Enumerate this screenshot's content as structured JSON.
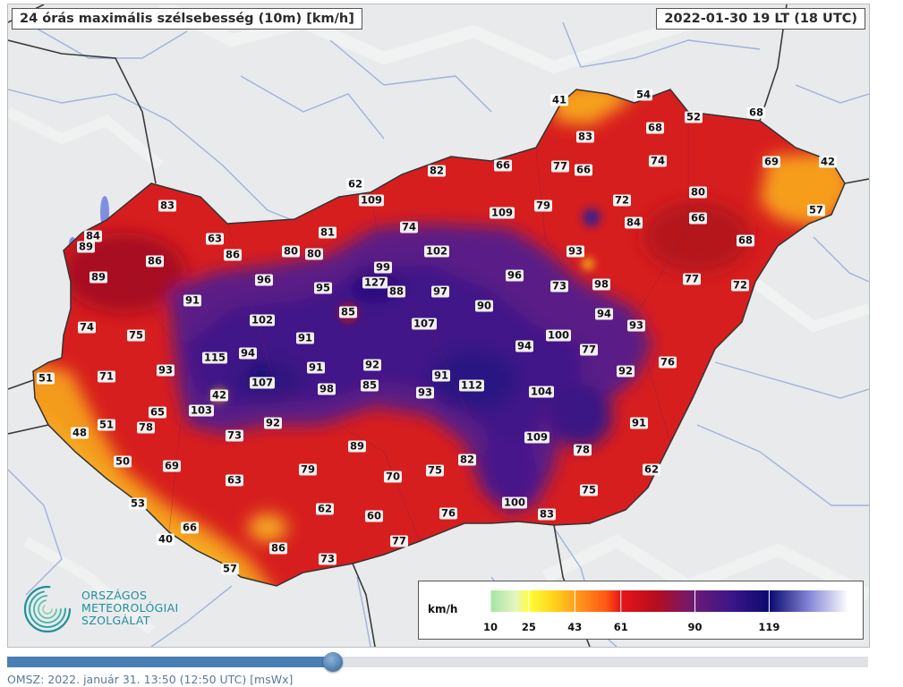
{
  "header": {
    "title": "24 órás maximális szélsebesség (10m) [km/h]",
    "timestamp": "2022-01-30 19 LT  (18 UTC)"
  },
  "colors": {
    "background_terrain": "#e9eaec",
    "country_base": "#d71e1e",
    "violet_core": "#4a1a8c",
    "orange_border": "#f6a21a"
  },
  "map": {
    "region": "Magyarország",
    "stations": [
      {
        "value": "41"
      },
      {
        "value": "54"
      },
      {
        "value": "52"
      },
      {
        "value": "68"
      },
      {
        "value": "83"
      },
      {
        "value": "68"
      },
      {
        "value": "77"
      },
      {
        "value": "66"
      },
      {
        "value": "66"
      },
      {
        "value": "74"
      },
      {
        "value": "69"
      },
      {
        "value": "42"
      },
      {
        "value": "82"
      },
      {
        "value": "62"
      },
      {
        "value": "109"
      },
      {
        "value": "109"
      },
      {
        "value": "79"
      },
      {
        "value": "72"
      },
      {
        "value": "80"
      },
      {
        "value": "57"
      },
      {
        "value": "83"
      },
      {
        "value": "74"
      },
      {
        "value": "84"
      },
      {
        "value": "66"
      },
      {
        "value": "84"
      },
      {
        "value": "63"
      },
      {
        "value": "81"
      },
      {
        "value": "89"
      },
      {
        "value": "86"
      },
      {
        "value": "80"
      },
      {
        "value": "80"
      },
      {
        "value": "102"
      },
      {
        "value": "93"
      },
      {
        "value": "68"
      },
      {
        "value": "86"
      },
      {
        "value": "99"
      },
      {
        "value": "89"
      },
      {
        "value": "96"
      },
      {
        "value": "127"
      },
      {
        "value": "95"
      },
      {
        "value": "88"
      },
      {
        "value": "97"
      },
      {
        "value": "96"
      },
      {
        "value": "73"
      },
      {
        "value": "98"
      },
      {
        "value": "77"
      },
      {
        "value": "72"
      },
      {
        "value": "91"
      },
      {
        "value": "85"
      },
      {
        "value": "90"
      },
      {
        "value": "94"
      },
      {
        "value": "74"
      },
      {
        "value": "102"
      },
      {
        "value": "107"
      },
      {
        "value": "93"
      },
      {
        "value": "75"
      },
      {
        "value": "91"
      },
      {
        "value": "100"
      },
      {
        "value": "94"
      },
      {
        "value": "77"
      },
      {
        "value": "94"
      },
      {
        "value": "115"
      },
      {
        "value": "51"
      },
      {
        "value": "71"
      },
      {
        "value": "93"
      },
      {
        "value": "91"
      },
      {
        "value": "92"
      },
      {
        "value": "91"
      },
      {
        "value": "76"
      },
      {
        "value": "107"
      },
      {
        "value": "98"
      },
      {
        "value": "85"
      },
      {
        "value": "112"
      },
      {
        "value": "92"
      },
      {
        "value": "42"
      },
      {
        "value": "93"
      },
      {
        "value": "104"
      },
      {
        "value": "103"
      },
      {
        "value": "65"
      },
      {
        "value": "51"
      },
      {
        "value": "78"
      },
      {
        "value": "92"
      },
      {
        "value": "91"
      },
      {
        "value": "48"
      },
      {
        "value": "73"
      },
      {
        "value": "109"
      },
      {
        "value": "89"
      },
      {
        "value": "78"
      },
      {
        "value": "50"
      },
      {
        "value": "69"
      },
      {
        "value": "79"
      },
      {
        "value": "82"
      },
      {
        "value": "70"
      },
      {
        "value": "75"
      },
      {
        "value": "62"
      },
      {
        "value": "63"
      },
      {
        "value": "75"
      },
      {
        "value": "53"
      },
      {
        "value": "62"
      },
      {
        "value": "60"
      },
      {
        "value": "76"
      },
      {
        "value": "100"
      },
      {
        "value": "83"
      },
      {
        "value": "66"
      },
      {
        "value": "40"
      },
      {
        "value": "86"
      },
      {
        "value": "77"
      },
      {
        "value": "73"
      },
      {
        "value": "57"
      }
    ]
  },
  "legend": {
    "unit": "km/h",
    "ticks": [
      "10",
      "25",
      "43",
      "61",
      "90",
      "119"
    ],
    "tick_values": [
      10,
      25,
      43,
      61,
      90,
      119
    ],
    "range_max": 150,
    "stops": [
      {
        "value": 10,
        "color": "#a6e3a6"
      },
      {
        "value": 20,
        "color": "#e6f5c0"
      },
      {
        "value": 25,
        "color": "#ffff3a"
      },
      {
        "value": 35,
        "color": "#ffd21a"
      },
      {
        "value": 43,
        "color": "#ff9f1c"
      },
      {
        "value": 55,
        "color": "#ff5a14"
      },
      {
        "value": 61,
        "color": "#e8141a"
      },
      {
        "value": 75,
        "color": "#b50e1e"
      },
      {
        "value": 90,
        "color": "#6a1a78"
      },
      {
        "value": 105,
        "color": "#3a1588"
      },
      {
        "value": 119,
        "color": "#0a0a70"
      },
      {
        "value": 135,
        "color": "#8888d8"
      },
      {
        "value": 150,
        "color": "#ffffff"
      }
    ]
  },
  "logo": {
    "line1": "ORSZÁGOS",
    "line2": "METEOROLÓGIAI",
    "line3": "SZOLGÁLAT"
  },
  "timeline": {
    "progress": 0.378
  },
  "footer": {
    "credit": "OMSZ: 2022. január 31. 13:50 (12:50  UTC)  [msWx]"
  }
}
